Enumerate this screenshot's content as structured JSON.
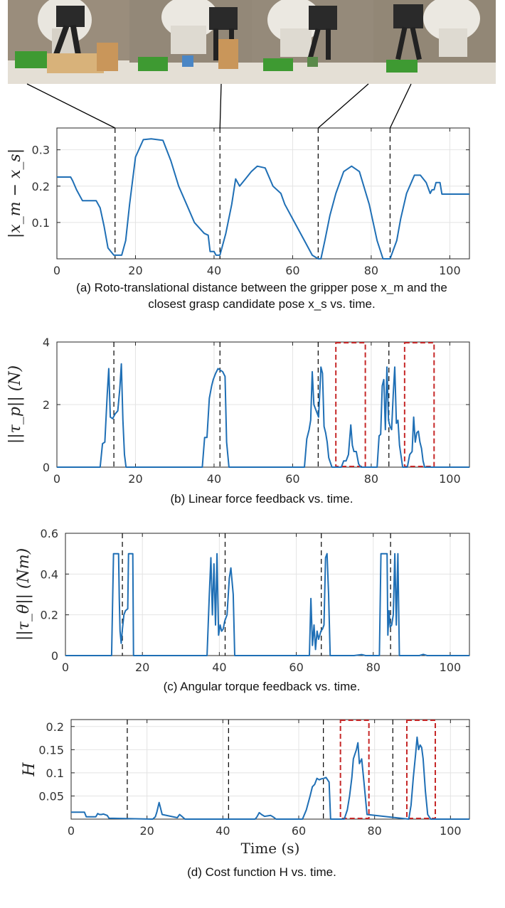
{
  "photo_labels": [
    "robot-gripper-photo-1",
    "robot-gripper-photo-2",
    "robot-gripper-photo-3",
    "robot-gripper-photo-4"
  ],
  "colors": {
    "line": "#1f6fb5",
    "box": "#c62828",
    "marker": "#000000",
    "grid": "#e4e4e4",
    "axis": "#262626"
  },
  "chart_data": [
    {
      "type": "line",
      "ylabel": "|x_m − x_s|",
      "xlabel": "",
      "caption": [
        "(a) Roto-translational distance between the gripper pose x_m and the",
        "closest grasp candidate pose x_s vs. time."
      ],
      "xlim": [
        0,
        105
      ],
      "ylim": [
        0,
        0.36
      ],
      "xticks": [
        0,
        20,
        40,
        60,
        80,
        100
      ],
      "yticks": [
        0.1,
        0.2,
        0.3
      ],
      "ytick_labels": [
        "0.1",
        "0.2",
        "0.3"
      ],
      "grid": true,
      "markers_x": [
        14.8,
        41.5,
        66.5,
        84.8
      ],
      "boxes": [],
      "series": [
        {
          "x": [
            0,
            3.5,
            4,
            5,
            6.5,
            8,
            10,
            11,
            12,
            13,
            14.5,
            15.5,
            16.5,
            17.5,
            18.5,
            20,
            22,
            24,
            27,
            29,
            31,
            33,
            35,
            37.5,
            38.5,
            39,
            40,
            40.5,
            41.5,
            43,
            44.5,
            45.5,
            46.5,
            48,
            49.5,
            51,
            53,
            55,
            57,
            58,
            60.5,
            63,
            65,
            66.5,
            67.2,
            68.2,
            69.5,
            71,
            73,
            75,
            77,
            79.5,
            81.5,
            83,
            84.8,
            86.5,
            87.5,
            89,
            91,
            92.5,
            94,
            95,
            95.5,
            96,
            96.5,
            97.5,
            98,
            105
          ],
          "y": [
            0.225,
            0.225,
            0.215,
            0.19,
            0.16,
            0.16,
            0.16,
            0.14,
            0.09,
            0.03,
            0.01,
            0.01,
            0.01,
            0.05,
            0.15,
            0.28,
            0.328,
            0.33,
            0.326,
            0.27,
            0.2,
            0.15,
            0.1,
            0.07,
            0.065,
            0.02,
            0.02,
            0.01,
            0.01,
            0.07,
            0.15,
            0.22,
            0.2,
            0.22,
            0.24,
            0.255,
            0.25,
            0.2,
            0.18,
            0.15,
            0.1,
            0.05,
            0.01,
            0.0,
            0.0,
            0.05,
            0.12,
            0.18,
            0.24,
            0.255,
            0.24,
            0.15,
            0.05,
            0.0,
            0.0,
            0.05,
            0.11,
            0.18,
            0.23,
            0.23,
            0.21,
            0.18,
            0.19,
            0.19,
            0.21,
            0.21,
            0.178,
            0.178
          ]
        }
      ]
    },
    {
      "type": "line",
      "ylabel": "||τ_p|| (N)",
      "xlabel": "",
      "caption": [
        "(b) Linear force feedback vs. time."
      ],
      "xlim": [
        0,
        105
      ],
      "ylim": [
        0,
        4
      ],
      "xticks": [
        0,
        20,
        40,
        60,
        80,
        100
      ],
      "yticks": [
        0,
        2,
        4
      ],
      "ytick_labels": [
        "0",
        "2",
        "4"
      ],
      "grid": true,
      "markers_x": [
        14.5,
        41.5,
        66.5,
        84.5
      ],
      "boxes": [
        [
          71,
          78.5
        ],
        [
          88.5,
          96
        ]
      ],
      "series": [
        {
          "x": [
            0,
            11,
            11.6,
            12.2,
            12.8,
            13.2,
            13.6,
            14.2,
            14.8,
            15.5,
            16,
            16.4,
            16.8,
            17.2,
            17.6,
            37,
            37.6,
            38.2,
            38.8,
            39.4,
            39.8,
            40.4,
            41,
            41.6,
            42.2,
            42.8,
            43.2,
            43.8,
            63,
            63.6,
            64.2,
            64.6,
            65,
            65.4,
            66,
            66.6,
            67.2,
            67.6,
            68,
            68.4,
            68.8,
            69.2,
            70,
            72.4,
            73,
            73.6,
            74.2,
            74.8,
            75.2,
            75.6,
            76.2,
            76.8,
            77.4,
            81.5,
            82,
            82.4,
            82.8,
            83.2,
            83.6,
            84,
            84.4,
            84.8,
            85.2,
            85.6,
            86,
            86.4,
            86.8,
            87.2,
            88,
            89.2,
            89.8,
            90.4,
            90.8,
            91.2,
            91.6,
            92,
            92.4,
            92.8,
            93.2,
            93.6,
            105
          ],
          "y": [
            0,
            0,
            0.75,
            0.8,
            2.3,
            3.15,
            1.6,
            1.55,
            1.7,
            1.8,
            2.5,
            3.3,
            1.5,
            0.4,
            0,
            0,
            0.95,
            0.95,
            2.2,
            2.6,
            2.8,
            3.0,
            3.15,
            3.1,
            3.05,
            2.9,
            0.8,
            0,
            0,
            0.9,
            1.2,
            1.5,
            3.05,
            2.0,
            1.8,
            1.6,
            3.2,
            3.0,
            1.3,
            1.1,
            0.8,
            0.3,
            0,
            0,
            0.2,
            0.2,
            0.4,
            1.35,
            0.7,
            0.5,
            0.5,
            0.1,
            0,
            0,
            1.0,
            1.05,
            2.6,
            2.8,
            1.2,
            3.2,
            1.5,
            1.3,
            1.2,
            2.3,
            3.2,
            1.4,
            1.5,
            0.7,
            0,
            0,
            0.4,
            0.5,
            1.6,
            0.8,
            1.1,
            1.15,
            0.8,
            0.6,
            0.2,
            0,
            0
          ]
        }
      ]
    },
    {
      "type": "line",
      "ylabel": "||τ_θ|| (Nm)",
      "xlabel": "",
      "caption": [
        "(c) Angular torque feedback vs. time."
      ],
      "xlim": [
        0,
        105
      ],
      "ylim": [
        0,
        0.6
      ],
      "xticks": [
        0,
        20,
        40,
        60,
        80,
        100
      ],
      "yticks": [
        0,
        0.2,
        0.4,
        0.6
      ],
      "ytick_labels": [
        "0",
        "0.2",
        "0.4",
        "0.6"
      ],
      "grid": true,
      "markers_x": [
        14.8,
        41.5,
        66.5,
        84.5
      ],
      "boxes": [],
      "series": [
        {
          "x": [
            0,
            12,
            12.5,
            13.8,
            14,
            14.2,
            14.5,
            14.8,
            15.2,
            15.6,
            16.2,
            16.4,
            17.5,
            17.7,
            36.8,
            37.4,
            37.8,
            38.2,
            38.6,
            39,
            39.4,
            39.8,
            40.2,
            40.6,
            41,
            41.4,
            42,
            42.6,
            43,
            43.6,
            44,
            63.4,
            63.8,
            64.2,
            64.6,
            65,
            65.4,
            65.8,
            66.4,
            66.8,
            67.2,
            67.6,
            68,
            68.4,
            68.8,
            75,
            77,
            78,
            81.6,
            82,
            83.6,
            83.8,
            84.1,
            84.4,
            84.8,
            85.2,
            85.6,
            86,
            86.4,
            86.8,
            92,
            93,
            94,
            105
          ],
          "y": [
            0,
            0,
            0.5,
            0.5,
            0.28,
            0.12,
            0.06,
            0.13,
            0.2,
            0.22,
            0.23,
            0.5,
            0.5,
            0,
            0,
            0.3,
            0.48,
            0.2,
            0.45,
            0.15,
            0.5,
            0.1,
            0.15,
            0.12,
            0.13,
            0.17,
            0.2,
            0.38,
            0.43,
            0.3,
            0,
            0,
            0.28,
            0.05,
            0.15,
            0.03,
            0.12,
            0.08,
            0.12,
            0.13,
            0.15,
            0.48,
            0.5,
            0.3,
            0,
            0,
            0.005,
            0,
            0,
            0.5,
            0.5,
            0.1,
            0.22,
            0.14,
            0.15,
            0.2,
            0.5,
            0.15,
            0.5,
            0,
            0,
            0.006,
            0,
            0
          ]
        }
      ]
    },
    {
      "type": "line",
      "ylabel": "H",
      "xlabel": "Time (s)",
      "caption": [
        "(d) Cost function H vs. time."
      ],
      "xlim": [
        0,
        105
      ],
      "ylim": [
        0,
        0.215
      ],
      "xticks": [
        0,
        20,
        40,
        60,
        80,
        100
      ],
      "yticks": [
        0.05,
        0.1,
        0.15,
        0.2
      ],
      "ytick_labels": [
        "0.05",
        "0.1",
        "0.15",
        "0.2"
      ],
      "grid": true,
      "markers_x": [
        14.8,
        41.5,
        66.5,
        84.8
      ],
      "boxes": [
        [
          71,
          78.5
        ],
        [
          88.5,
          96
        ]
      ],
      "series": [
        {
          "x": [
            0,
            3.5,
            4,
            6.5,
            7,
            7.5,
            8,
            8.5,
            9.5,
            10,
            21.5,
            22.2,
            22.6,
            23.2,
            24,
            28,
            28.6,
            29.2,
            30,
            48.5,
            49,
            49.6,
            50.2,
            51,
            52.6,
            53.4,
            54,
            61,
            62,
            63,
            63.6,
            64.2,
            64.8,
            65.4,
            66,
            66.6,
            67.2,
            68,
            68.4,
            72,
            72.8,
            73.4,
            74,
            74.4,
            74.8,
            75.2,
            75.6,
            76,
            76.6,
            77.2,
            78,
            89,
            89.6,
            90.2,
            90.8,
            91.2,
            91.6,
            92,
            92.4,
            92.8,
            93.4,
            94,
            94.8,
            105
          ],
          "y": [
            0.015,
            0.015,
            0.005,
            0.005,
            0.012,
            0.01,
            0.01,
            0.011,
            0.008,
            0.002,
            0,
            0.005,
            0.015,
            0.036,
            0.01,
            0.003,
            0.01,
            0.006,
            0,
            0,
            0.005,
            0.014,
            0.01,
            0.006,
            0.008,
            0.004,
            0,
            0,
            0.02,
            0.05,
            0.07,
            0.075,
            0.088,
            0.085,
            0.087,
            0.088,
            0.09,
            0.08,
            0,
            0,
            0.02,
            0.05,
            0.09,
            0.13,
            0.14,
            0.15,
            0.165,
            0.12,
            0.13,
            0.08,
            0.01,
            0,
            0.03,
            0.09,
            0.14,
            0.177,
            0.15,
            0.16,
            0.155,
            0.13,
            0.06,
            0.01,
            0,
            0
          ]
        }
      ]
    }
  ]
}
